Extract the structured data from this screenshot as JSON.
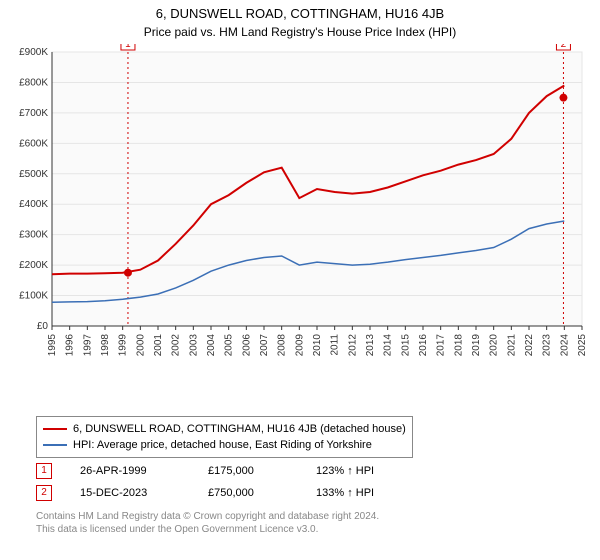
{
  "title": "6, DUNSWELL ROAD, COTTINGHAM, HU16 4JB",
  "subtitle": "Price paid vs. HM Land Registry's House Price Index (HPI)",
  "chart": {
    "type": "line",
    "background_color": "#ffffff",
    "plot_bg_color": "#fafafa",
    "grid_color": "#e5e5e5",
    "axis_color": "#333333",
    "tick_font_size": 10,
    "xlim": [
      1995,
      2025
    ],
    "ylim": [
      0,
      900000
    ],
    "ytick_step": 100000,
    "ytick_labels": [
      "£0",
      "£100K",
      "£200K",
      "£300K",
      "£400K",
      "£500K",
      "£600K",
      "£700K",
      "£800K",
      "£900K"
    ],
    "xtick_step": 1,
    "xticks": [
      1995,
      1996,
      1997,
      1998,
      1999,
      2000,
      2001,
      2002,
      2003,
      2004,
      2005,
      2006,
      2007,
      2008,
      2009,
      2010,
      2011,
      2012,
      2013,
      2014,
      2015,
      2016,
      2017,
      2018,
      2019,
      2020,
      2021,
      2022,
      2023,
      2024,
      2025
    ],
    "series": [
      {
        "name": "property",
        "label": "6, DUNSWELL ROAD, COTTINGHAM, HU16 4JB (detached house)",
        "color": "#d00000",
        "line_width": 2,
        "years": [
          1995,
          1996,
          1997,
          1998,
          1999,
          2000,
          2001,
          2002,
          2003,
          2004,
          2005,
          2006,
          2007,
          2008,
          2009,
          2010,
          2011,
          2012,
          2013,
          2014,
          2015,
          2016,
          2017,
          2018,
          2019,
          2020,
          2021,
          2022,
          2023,
          2024
        ],
        "values": [
          170000,
          172000,
          172000,
          173000,
          175000,
          185000,
          215000,
          270000,
          330000,
          400000,
          430000,
          470000,
          505000,
          520000,
          420000,
          450000,
          440000,
          435000,
          440000,
          455000,
          475000,
          495000,
          510000,
          530000,
          545000,
          565000,
          615000,
          700000,
          755000,
          790000
        ]
      },
      {
        "name": "hpi",
        "label": "HPI: Average price, detached house, East Riding of Yorkshire",
        "color": "#3b6fb6",
        "line_width": 1.5,
        "years": [
          1995,
          1996,
          1997,
          1998,
          1999,
          2000,
          2001,
          2002,
          2003,
          2004,
          2005,
          2006,
          2007,
          2008,
          2009,
          2010,
          2011,
          2012,
          2013,
          2014,
          2015,
          2016,
          2017,
          2018,
          2019,
          2020,
          2021,
          2022,
          2023,
          2024
        ],
        "values": [
          78000,
          79000,
          80000,
          83000,
          88000,
          95000,
          105000,
          125000,
          150000,
          180000,
          200000,
          215000,
          225000,
          230000,
          200000,
          210000,
          205000,
          200000,
          203000,
          210000,
          218000,
          225000,
          232000,
          240000,
          248000,
          258000,
          285000,
          320000,
          335000,
          345000
        ]
      }
    ],
    "markers": [
      {
        "badge": "1",
        "year": 1999.3,
        "value": 175000,
        "color": "#d00000",
        "line_style": "dotted"
      },
      {
        "badge": "2",
        "year": 2023.95,
        "value": 750000,
        "color": "#d00000",
        "line_style": "dotted"
      }
    ]
  },
  "legend": {
    "items": [
      {
        "color": "#d00000",
        "label": "6, DUNSWELL ROAD, COTTINGHAM, HU16 4JB (detached house)"
      },
      {
        "color": "#3b6fb6",
        "label": "HPI: Average price, detached house, East Riding of Yorkshire"
      }
    ]
  },
  "events": [
    {
      "badge": "1",
      "date": "26-APR-1999",
      "price": "£175,000",
      "comparison": "123% ↑ HPI"
    },
    {
      "badge": "2",
      "date": "15-DEC-2023",
      "price": "£750,000",
      "comparison": "133% ↑ HPI"
    }
  ],
  "attribution": {
    "line1": "Contains HM Land Registry data © Crown copyright and database right 2024.",
    "line2": "This data is licensed under the Open Government Licence v3.0."
  }
}
